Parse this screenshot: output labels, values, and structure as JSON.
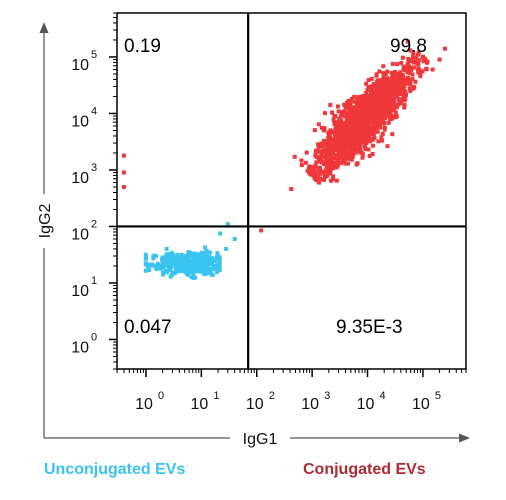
{
  "chart_data": {
    "type": "scatter",
    "title": "",
    "xlabel": "IgG1",
    "ylabel": "IgG2",
    "x_scale": "log",
    "y_scale": "log",
    "xlim": [
      0.3,
      600000
    ],
    "ylim": [
      0.3,
      600000
    ],
    "x_ticks": [
      {
        "value": 1,
        "label": "10",
        "exp": "0"
      },
      {
        "value": 10,
        "label": "10",
        "exp": "1"
      },
      {
        "value": 100,
        "label": "10",
        "exp": "2"
      },
      {
        "value": 1000,
        "label": "10",
        "exp": "3"
      },
      {
        "value": 10000,
        "label": "10",
        "exp": "4"
      },
      {
        "value": 100000,
        "label": "10",
        "exp": "5"
      }
    ],
    "y_ticks": [
      {
        "value": 1,
        "label": "10",
        "exp": "0"
      },
      {
        "value": 10,
        "label": "10",
        "exp": "1"
      },
      {
        "value": 100,
        "label": "10",
        "exp": "2"
      },
      {
        "value": 1000,
        "label": "10",
        "exp": "3"
      },
      {
        "value": 10000,
        "label": "10",
        "exp": "4"
      },
      {
        "value": 100000,
        "label": "10",
        "exp": "5"
      }
    ],
    "gates": {
      "x_value": 70,
      "y_value": 100
    },
    "quadrant_labels": {
      "upper_left": "0.19",
      "upper_right": "99.8",
      "lower_left": "0.047",
      "lower_right": "9.35E-3"
    },
    "series": [
      {
        "name": "Unconjugated EVs",
        "color": "#39c4ef",
        "cluster": {
          "x_center": 7,
          "y_center": 22,
          "x_spread_decades": [
            0.7,
            0.4
          ],
          "y_spread_decades": [
            0.12,
            0.12
          ]
        },
        "outliers": [
          [
            28,
            40
          ],
          [
            40,
            60
          ],
          [
            22,
            75
          ],
          [
            30,
            110
          ]
        ]
      },
      {
        "name": "Conjugated EVs",
        "color": "#f0373a",
        "cluster": {
          "x_start": 1000,
          "y_start": 800,
          "x_end": 100000,
          "y_end": 100000,
          "width_decades": 0.35
        },
        "outliers": [
          [
            1800,
            1000
          ],
          [
            420,
            460
          ],
          [
            120,
            85
          ],
          [
            250000,
            140000
          ],
          [
            150000,
            60000
          ],
          [
            200000,
            90000
          ],
          [
            0.4,
            900
          ],
          [
            0.4,
            1800
          ],
          [
            0.4,
            500
          ]
        ]
      }
    ],
    "grid": false,
    "legend_placement": "bottom"
  }
}
